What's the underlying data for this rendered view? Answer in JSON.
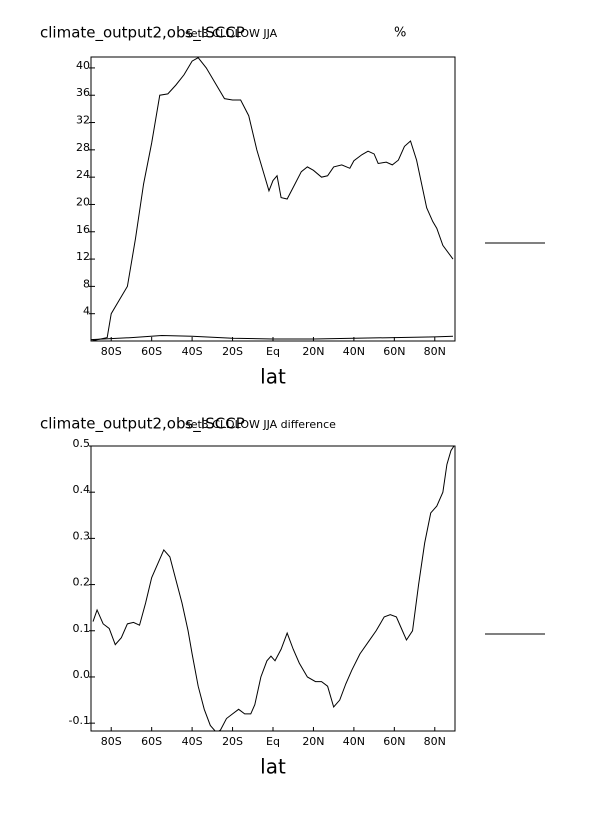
{
  "chart_data": [
    {
      "type": "line",
      "title": "climate_output2,obs_ISCCP",
      "subtitle": "set3 CLDLOW JJA",
      "units": "%",
      "xlabel": "lat",
      "xlim": [
        -90,
        90
      ],
      "ylim": [
        0,
        41.6
      ],
      "xticks": [
        {
          "value": -80,
          "label": "80S"
        },
        {
          "value": -60,
          "label": "60S"
        },
        {
          "value": -40,
          "label": "40S"
        },
        {
          "value": -20,
          "label": "20S"
        },
        {
          "value": 0,
          "label": "Eq"
        },
        {
          "value": 20,
          "label": "20N"
        },
        {
          "value": 40,
          "label": "40N"
        },
        {
          "value": 60,
          "label": "60N"
        },
        {
          "value": 80,
          "label": "80N"
        }
      ],
      "yticks": [
        4,
        8,
        12,
        16,
        20,
        24,
        28,
        32,
        36,
        40
      ],
      "series": [
        {
          "color": "#000000",
          "x": [
            -90,
            -82,
            -80,
            -76,
            -72,
            -68,
            -64,
            -60,
            -56,
            -52,
            -48,
            -44,
            -40,
            -37,
            -33,
            -28,
            -24,
            -20,
            -16,
            -12,
            -8,
            -4,
            -2,
            0,
            2,
            4,
            7,
            10,
            14,
            17,
            20,
            24,
            27,
            30,
            34,
            38,
            40,
            44,
            47,
            50,
            52,
            56,
            59,
            62,
            65,
            68,
            71,
            76,
            79,
            81,
            84,
            89
          ],
          "values": [
            0,
            0.5,
            4,
            6,
            8,
            15,
            23,
            29,
            36,
            36.2,
            37.5,
            39,
            41,
            41.5,
            40,
            37.5,
            35.5,
            35.3,
            35.3,
            33,
            28,
            24,
            22,
            23.5,
            24.2,
            21,
            20.8,
            22.5,
            24.8,
            25.5,
            25,
            24,
            24.2,
            25.5,
            25.8,
            25.3,
            26.4,
            27.3,
            27.8,
            27.4,
            26,
            26.2,
            25.8,
            26.5,
            28.5,
            29.3,
            26.5,
            19.5,
            17.5,
            16.5,
            14,
            12
          ]
        },
        {
          "color": "#000000",
          "x": [
            -90,
            -70,
            -55,
            -40,
            -20,
            0,
            20,
            40,
            60,
            80,
            89
          ],
          "values": [
            0.2,
            0.5,
            0.8,
            0.7,
            0.4,
            0.3,
            0.3,
            0.4,
            0.5,
            0.6,
            0.7
          ]
        }
      ]
    },
    {
      "type": "line",
      "title": "climate_output2,obs_ISCCP",
      "subtitle": "set3 CLDLOW JJA difference",
      "xlabel": "lat",
      "xlim": [
        -90,
        90
      ],
      "ylim": [
        -0.117,
        0.5
      ],
      "xticks": [
        {
          "value": -80,
          "label": "80S"
        },
        {
          "value": -60,
          "label": "60S"
        },
        {
          "value": -40,
          "label": "40S"
        },
        {
          "value": -20,
          "label": "20S"
        },
        {
          "value": 0,
          "label": "Eq"
        },
        {
          "value": 20,
          "label": "20N"
        },
        {
          "value": 40,
          "label": "40N"
        },
        {
          "value": 60,
          "label": "60N"
        },
        {
          "value": 80,
          "label": "80N"
        }
      ],
      "yticks": [
        -0.1,
        {
          "value": 0,
          "label": "0.0"
        },
        0.1,
        0.2,
        0.3,
        0.4,
        0.5
      ],
      "series": [
        {
          "color": "#000000",
          "x": [
            -89,
            -87,
            -84,
            -81,
            -78,
            -75,
            -72,
            -69,
            -66,
            -63,
            -60,
            -56,
            -54,
            -51,
            -48,
            -45,
            -42,
            -40,
            -37,
            -34,
            -31,
            -28,
            -26,
            -23,
            -20,
            -17,
            -14,
            -11,
            -9,
            -6,
            -3,
            -1,
            1,
            4,
            7,
            10,
            13,
            17,
            21,
            24,
            27,
            30,
            33,
            36,
            39,
            43,
            47,
            51,
            55,
            58,
            61,
            64,
            66,
            69,
            72,
            75,
            78,
            81,
            84,
            86,
            88,
            89.5
          ],
          "values": [
            0.12,
            0.145,
            0.115,
            0.105,
            0.07,
            0.085,
            0.115,
            0.118,
            0.112,
            0.16,
            0.215,
            0.255,
            0.275,
            0.26,
            0.21,
            0.16,
            0.1,
            0.05,
            -0.02,
            -0.07,
            -0.105,
            -0.12,
            -0.115,
            -0.09,
            -0.08,
            -0.07,
            -0.08,
            -0.08,
            -0.06,
            0.0,
            0.035,
            0.045,
            0.035,
            0.06,
            0.095,
            0.06,
            0.03,
            0.0,
            -0.01,
            -0.01,
            -0.02,
            -0.065,
            -0.05,
            -0.015,
            0.015,
            0.05,
            0.075,
            0.1,
            0.13,
            0.135,
            0.13,
            0.1,
            0.08,
            0.1,
            0.2,
            0.29,
            0.355,
            0.37,
            0.4,
            0.46,
            0.49,
            0.5
          ]
        }
      ]
    }
  ]
}
